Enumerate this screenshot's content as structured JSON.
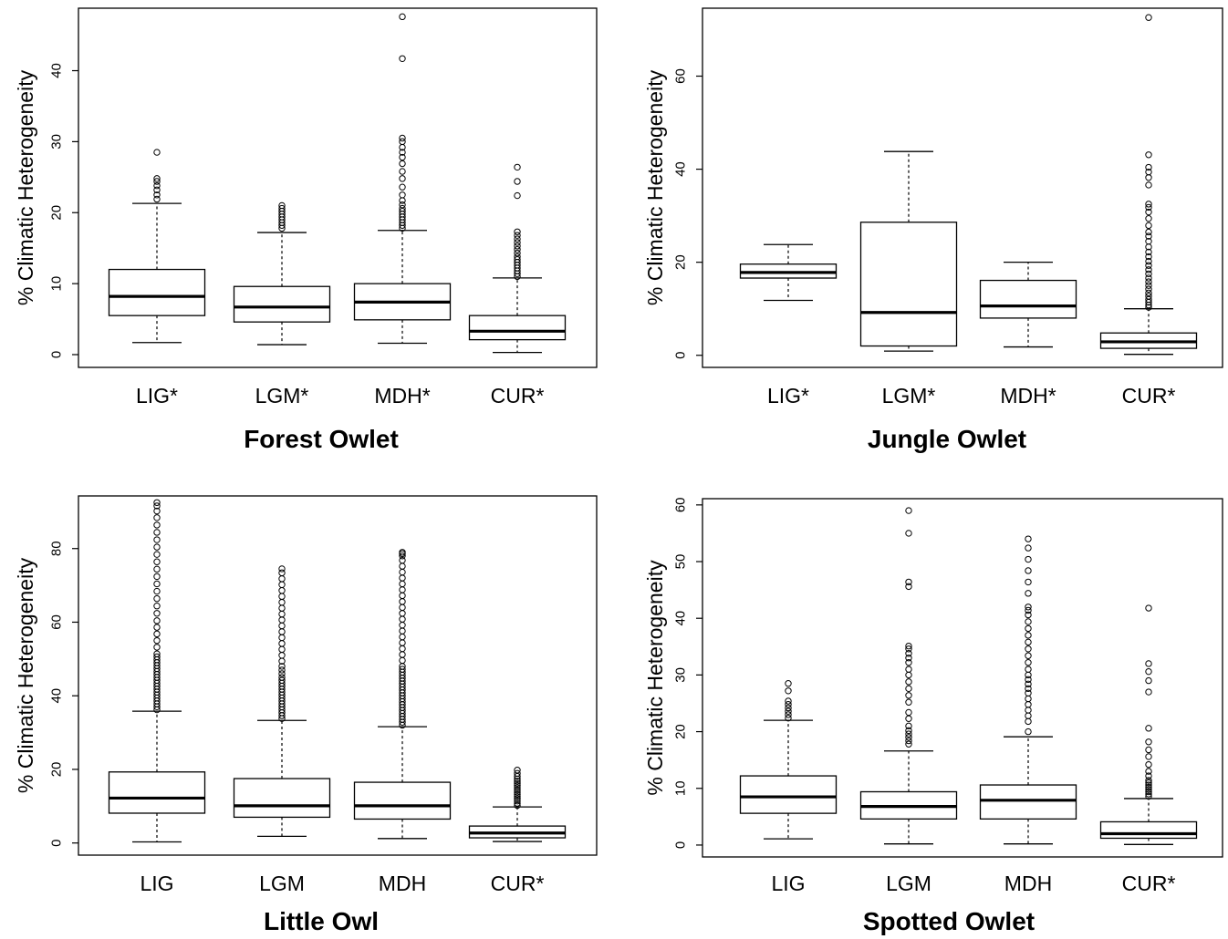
{
  "chart_data": [
    {
      "type": "box",
      "title": "Forest Owlet",
      "ylabel": "% Climatic Heterogeneity",
      "ylim": [
        -1.8,
        48.8
      ],
      "yticks": [
        0,
        10,
        20,
        30,
        40
      ],
      "categories": [
        "LIG*",
        "LGM*",
        "MDH*",
        "CUR*"
      ],
      "boxes": [
        {
          "category": "LIG*",
          "whisker_low": 1.7,
          "q1": 5.5,
          "median": 8.2,
          "q3": 12.0,
          "whisker_high": 21.3,
          "outliers": [
            21.9,
            22.5,
            23.2,
            23.8,
            24.4,
            24.8,
            28.5
          ]
        },
        {
          "category": "LGM*",
          "whisker_low": 1.4,
          "q1": 4.6,
          "median": 6.7,
          "q3": 9.6,
          "whisker_high": 17.2,
          "outliers": [
            17.8,
            18.2,
            18.6,
            19.0,
            19.4,
            19.8,
            20.2,
            20.6,
            21.0
          ]
        },
        {
          "category": "MDH*",
          "whisker_low": 1.6,
          "q1": 4.9,
          "median": 7.4,
          "q3": 10.0,
          "whisker_high": 17.5,
          "outliers": [
            17.8,
            18.2,
            18.6,
            19.0,
            19.4,
            19.8,
            20.2,
            20.6,
            21.1,
            21.7,
            22.5,
            23.6,
            24.8,
            25.8,
            26.9,
            27.8,
            28.5,
            29.2,
            30.0,
            30.5,
            41.7,
            47.6
          ]
        },
        {
          "category": "CUR*",
          "whisker_low": 0.3,
          "q1": 2.1,
          "median": 3.3,
          "q3": 5.5,
          "whisker_high": 10.8,
          "outliers": [
            11.0,
            11.4,
            11.8,
            12.2,
            12.6,
            13.0,
            13.4,
            13.8,
            14.3,
            14.8,
            15.3,
            15.8,
            16.3,
            16.8,
            17.3,
            22.4,
            24.4,
            26.4
          ]
        }
      ]
    },
    {
      "type": "box",
      "title": "Jungle Owlet",
      "ylabel": "% Climatic Heterogeneity",
      "ylim": [
        -2.6,
        74.6
      ],
      "yticks": [
        0,
        20,
        40,
        60
      ],
      "categories": [
        "LIG*",
        "LGM*",
        "MDH*",
        "CUR*"
      ],
      "boxes": [
        {
          "category": "LIG*",
          "whisker_low": 11.8,
          "q1": 16.6,
          "median": 17.8,
          "q3": 19.6,
          "whisker_high": 23.8,
          "outliers": []
        },
        {
          "category": "LGM*",
          "whisker_low": 0.9,
          "q1": 2.0,
          "median": 9.2,
          "q3": 28.6,
          "whisker_high": 43.8,
          "outliers": []
        },
        {
          "category": "MDH*",
          "whisker_low": 1.8,
          "q1": 8.0,
          "median": 10.6,
          "q3": 16.1,
          "whisker_high": 20.0,
          "outliers": []
        },
        {
          "category": "CUR*",
          "whisker_low": 0.2,
          "q1": 1.5,
          "median": 2.9,
          "q3": 4.8,
          "whisker_high": 10.0,
          "outliers": [
            10.3,
            10.8,
            11.4,
            12.0,
            12.7,
            13.4,
            14.2,
            15.0,
            15.8,
            16.6,
            17.5,
            18.4,
            19.3,
            20.2,
            21.2,
            22.2,
            23.3,
            24.5,
            25.6,
            26.5,
            27.9,
            29.4,
            30.8,
            31.8,
            32.5,
            36.6,
            38.2,
            39.4,
            40.4,
            43.1,
            72.6
          ]
        }
      ]
    },
    {
      "type": "box",
      "title": "Little Owl",
      "ylabel": "% Climatic Heterogeneity",
      "ylim": [
        -3.3,
        94.3
      ],
      "yticks": [
        0,
        20,
        40,
        60,
        80
      ],
      "categories": [
        "LIG",
        "LGM",
        "MDH",
        "CUR*"
      ],
      "boxes": [
        {
          "category": "LIG",
          "whisker_low": 0.3,
          "q1": 8.1,
          "median": 12.2,
          "q3": 19.3,
          "whisker_high": 35.8,
          "outliers": [
            36.2,
            37.0,
            37.8,
            38.6,
            39.4,
            40.2,
            41.0,
            41.8,
            42.6,
            43.4,
            44.2,
            45.0,
            45.8,
            46.6,
            47.4,
            48.2,
            49.0,
            49.8,
            50.6,
            51.4,
            53.2,
            55.0,
            56.8,
            58.6,
            60.4,
            62.4,
            64.4,
            66.4,
            68.4,
            70.4,
            72.4,
            74.4,
            76.4,
            78.4,
            80.4,
            82.4,
            84.4,
            86.4,
            88.4,
            90.2,
            91.6,
            92.5
          ]
        },
        {
          "category": "LGM",
          "whisker_low": 1.8,
          "q1": 7.0,
          "median": 10.1,
          "q3": 17.5,
          "whisker_high": 33.3,
          "outliers": [
            33.8,
            34.6,
            35.4,
            36.2,
            37.0,
            37.8,
            38.6,
            39.4,
            40.2,
            41.0,
            41.8,
            42.6,
            43.4,
            44.2,
            45.0,
            46.0,
            47.0,
            48.0,
            49.4,
            51.0,
            52.6,
            54.2,
            55.8,
            57.4,
            59.0,
            60.6,
            62.2,
            63.8,
            65.4,
            67.0,
            68.6,
            70.2,
            71.8,
            73.4,
            74.5
          ]
        },
        {
          "category": "MDH",
          "whisker_low": 1.2,
          "q1": 6.5,
          "median": 10.1,
          "q3": 16.5,
          "whisker_high": 31.6,
          "outliers": [
            32.0,
            32.8,
            33.6,
            34.4,
            35.2,
            36.0,
            36.8,
            37.6,
            38.4,
            39.2,
            40.0,
            40.8,
            41.6,
            42.4,
            43.2,
            44.0,
            44.8,
            45.6,
            46.4,
            47.2,
            48.0,
            49.6,
            51.2,
            52.8,
            54.4,
            56.0,
            57.6,
            59.2,
            60.8,
            62.4,
            64.0,
            65.6,
            67.2,
            68.8,
            70.4,
            72.0,
            73.6,
            75.2,
            76.8,
            78.0,
            78.6,
            79.0
          ]
        },
        {
          "category": "CUR*",
          "whisker_low": 0.4,
          "q1": 1.4,
          "median": 2.7,
          "q3": 4.6,
          "whisker_high": 9.8,
          "outliers": [
            10.2,
            10.8,
            11.4,
            12.0,
            12.6,
            13.2,
            13.8,
            14.4,
            15.0,
            15.6,
            16.2,
            16.8,
            17.4,
            18.1,
            18.9,
            19.8
          ]
        }
      ]
    },
    {
      "type": "box",
      "title": "Spotted Owlet",
      "ylabel": "% Climatic Heterogeneity",
      "ylim": [
        -2.1,
        61.1
      ],
      "yticks": [
        0,
        10,
        20,
        30,
        40,
        50,
        60
      ],
      "categories": [
        "LIG",
        "LGM",
        "MDH",
        "CUR*"
      ],
      "boxes": [
        {
          "category": "LIG",
          "whisker_low": 1.1,
          "q1": 5.6,
          "median": 8.5,
          "q3": 12.2,
          "whisker_high": 22.0,
          "outliers": [
            22.4,
            23.0,
            23.6,
            24.2,
            24.8,
            25.4,
            27.2,
            28.5
          ]
        },
        {
          "category": "LGM",
          "whisker_low": 0.2,
          "q1": 4.6,
          "median": 6.8,
          "q3": 9.4,
          "whisker_high": 16.6,
          "outliers": [
            17.8,
            18.4,
            19.0,
            19.6,
            20.2,
            21.0,
            22.3,
            23.4,
            25.2,
            26.4,
            27.6,
            28.8,
            30.0,
            31.0,
            32.2,
            33.0,
            33.8,
            34.6,
            35.1,
            45.6,
            46.4,
            55.0,
            59.0
          ]
        },
        {
          "category": "MDH",
          "whisker_low": 0.2,
          "q1": 4.6,
          "median": 7.9,
          "q3": 10.6,
          "whisker_high": 19.1,
          "outliers": [
            20.0,
            21.8,
            22.8,
            23.8,
            24.8,
            25.8,
            26.8,
            27.6,
            28.4,
            29.2,
            30.0,
            31.0,
            32.2,
            33.4,
            34.6,
            35.8,
            37.0,
            38.2,
            39.4,
            40.6,
            41.4,
            42.0,
            44.4,
            46.4,
            48.4,
            50.4,
            52.4,
            54.0
          ]
        },
        {
          "category": "CUR*",
          "whisker_low": 0.1,
          "q1": 1.2,
          "median": 2.0,
          "q3": 4.1,
          "whisker_high": 8.2,
          "outliers": [
            8.6,
            9.0,
            9.4,
            9.8,
            10.2,
            10.6,
            11.0,
            11.4,
            12.2,
            13.0,
            14.2,
            15.6,
            16.8,
            18.2,
            20.6,
            27.0,
            29.0,
            30.6,
            32.0,
            41.8
          ]
        }
      ]
    }
  ]
}
